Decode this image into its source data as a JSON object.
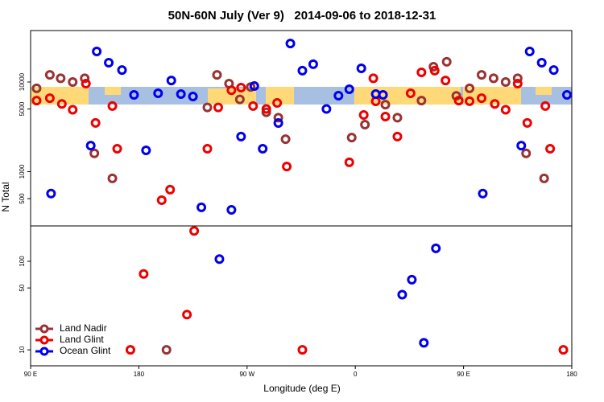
{
  "chart_data": [
    {
      "type": "scatter",
      "title": "50N-60N July (Ver 9)   2014-09-06 to 2018-12-31",
      "ylabel": "N Total",
      "log_y": true,
      "xlim": [
        90,
        540
      ],
      "ylim": [
        248,
        37500
      ],
      "yticks": [
        500,
        1000,
        5000,
        10000
      ],
      "series": [
        {
          "color": "#993333",
          "x": [
            95,
            106,
            115,
            125,
            135,
            143,
            158,
            245,
            237,
            255,
            264,
            273,
            286,
            296,
            302,
            357,
            368,
            385,
            395,
            415,
            425,
            436,
            444,
            455,
            465,
            475,
            485,
            495,
            502,
            517
          ],
          "values": [
            8500,
            12000,
            11000,
            10000,
            11000,
            1600,
            840,
            12000,
            5200,
            9600,
            6400,
            8800,
            4600,
            4000,
            2300,
            2400,
            3350,
            5600,
            4000,
            6200,
            14800,
            16800,
            7000,
            8500,
            12000,
            11000,
            10000,
            11000,
            1600,
            840
          ]
        },
        {
          "color": "#ee0000",
          "x": [
            95,
            106,
            116,
            125,
            136,
            144,
            158,
            162,
            199,
            206,
            237,
            246,
            257,
            265,
            275,
            286,
            295,
            303,
            355,
            367,
            375,
            377,
            385,
            395,
            406,
            415,
            426,
            435,
            446,
            455,
            465,
            476,
            485,
            495,
            503,
            518,
            522
          ],
          "values": [
            6200,
            6600,
            5700,
            4900,
            9600,
            3500,
            5400,
            1800,
            480,
            630,
            1800,
            5200,
            8100,
            8650,
            5400,
            5000,
            5850,
            1140,
            1270,
            4290,
            11000,
            6090,
            4110,
            2460,
            7490,
            12800,
            13400,
            10400,
            6200,
            6100,
            6600,
            5700,
            4900,
            9600,
            3500,
            5400,
            1800
          ]
        },
        {
          "color": "#0000ee",
          "x": [
            107,
            140,
            145,
            155,
            166,
            176,
            186,
            196,
            207,
            215,
            225,
            232,
            257,
            265,
            276,
            283,
            296,
            306,
            316,
            325,
            336,
            346,
            355,
            365,
            377,
            383,
            466,
            498,
            505,
            515,
            525,
            536
          ],
          "values": [
            570,
            1950,
            21900,
            16400,
            13600,
            7190,
            1730,
            7490,
            10400,
            7340,
            6900,
            400,
            375,
            2460,
            9020,
            1800,
            3490,
            26900,
            13400,
            15800,
            5000,
            7040,
            8300,
            14200,
            7340,
            7190,
            570,
            1950,
            21900,
            16400,
            13600,
            7190
          ]
        }
      ]
    },
    {
      "type": "scatter",
      "xlabel": "Longitude (deg E)",
      "log_y": true,
      "legend": "lower left",
      "xlim": [
        90,
        540
      ],
      "ylim": [
        6.6,
        251
      ],
      "xticks": [
        {
          "value": 90,
          "label": "90 E"
        },
        180,
        {
          "value": 270,
          "label": "90 W"
        },
        {
          "value": 360,
          "label": "0"
        },
        {
          "value": 450,
          "label": "90 E"
        },
        {
          "value": 540,
          "label": "180"
        }
      ],
      "yticks": [
        10,
        50,
        100
      ],
      "series": [
        {
          "name": "Land Nadir",
          "color": "#993333",
          "x": [
            203
          ],
          "values": [
            10
          ]
        },
        {
          "name": "Land Glint",
          "color": "#ee0000",
          "x": [
            173,
            184,
            220,
            226,
            316,
            533
          ],
          "values": [
            10,
            72,
            25,
            220,
            10,
            10
          ]
        },
        {
          "name": "Ocean Glint",
          "color": "#0000ee",
          "x": [
            247,
            399,
            407,
            417,
            427
          ],
          "values": [
            106,
            42,
            62,
            12,
            140
          ]
        }
      ]
    }
  ]
}
